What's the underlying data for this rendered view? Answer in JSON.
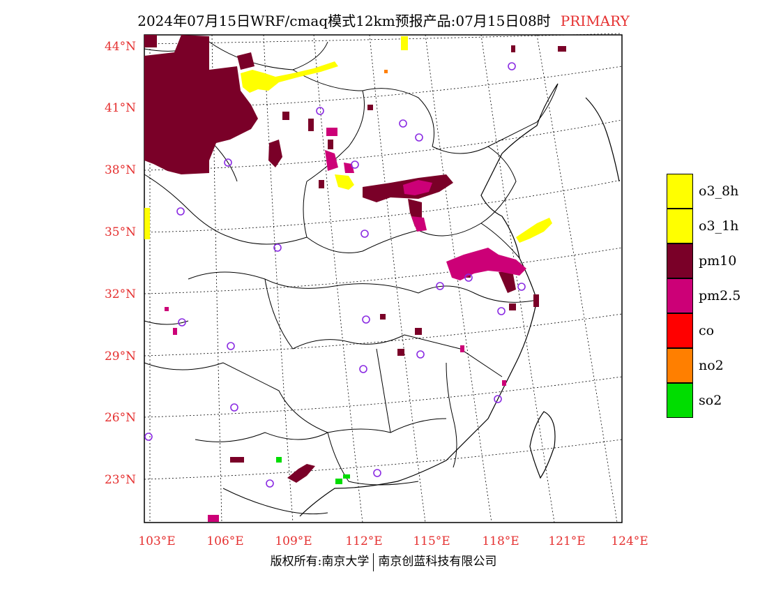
{
  "title": {
    "main": "2024年07月15日WRF/cmaq模式12km预报产品:07月15日08时",
    "tag": "PRIMARY"
  },
  "axes": {
    "lat_labels": [
      "44°N",
      "41°N",
      "38°N",
      "35°N",
      "32°N",
      "29°N",
      "26°N",
      "23°N"
    ],
    "lon_labels": [
      "103°E",
      "106°E",
      "109°E",
      "112°E",
      "115°E",
      "118°E",
      "121°E",
      "124°E"
    ]
  },
  "legend": [
    {
      "label": "o3_8h",
      "color": "#ffff00"
    },
    {
      "label": "o3_1h",
      "color": "#ffff00"
    },
    {
      "label": "pm10",
      "color": "#7a0028"
    },
    {
      "label": "pm2.5",
      "color": "#cc0077"
    },
    {
      "label": "co",
      "color": "#ff0000"
    },
    {
      "label": "no2",
      "color": "#ff7f00"
    },
    {
      "label": "so2",
      "color": "#00dd00"
    }
  ],
  "footer": {
    "left": "版权所有:南京大学",
    "right": "南京创蓝科技有限公司"
  },
  "colors": {
    "label_red": "#e53030",
    "station_marker": "#8a2be2",
    "boundary": "#000000"
  }
}
